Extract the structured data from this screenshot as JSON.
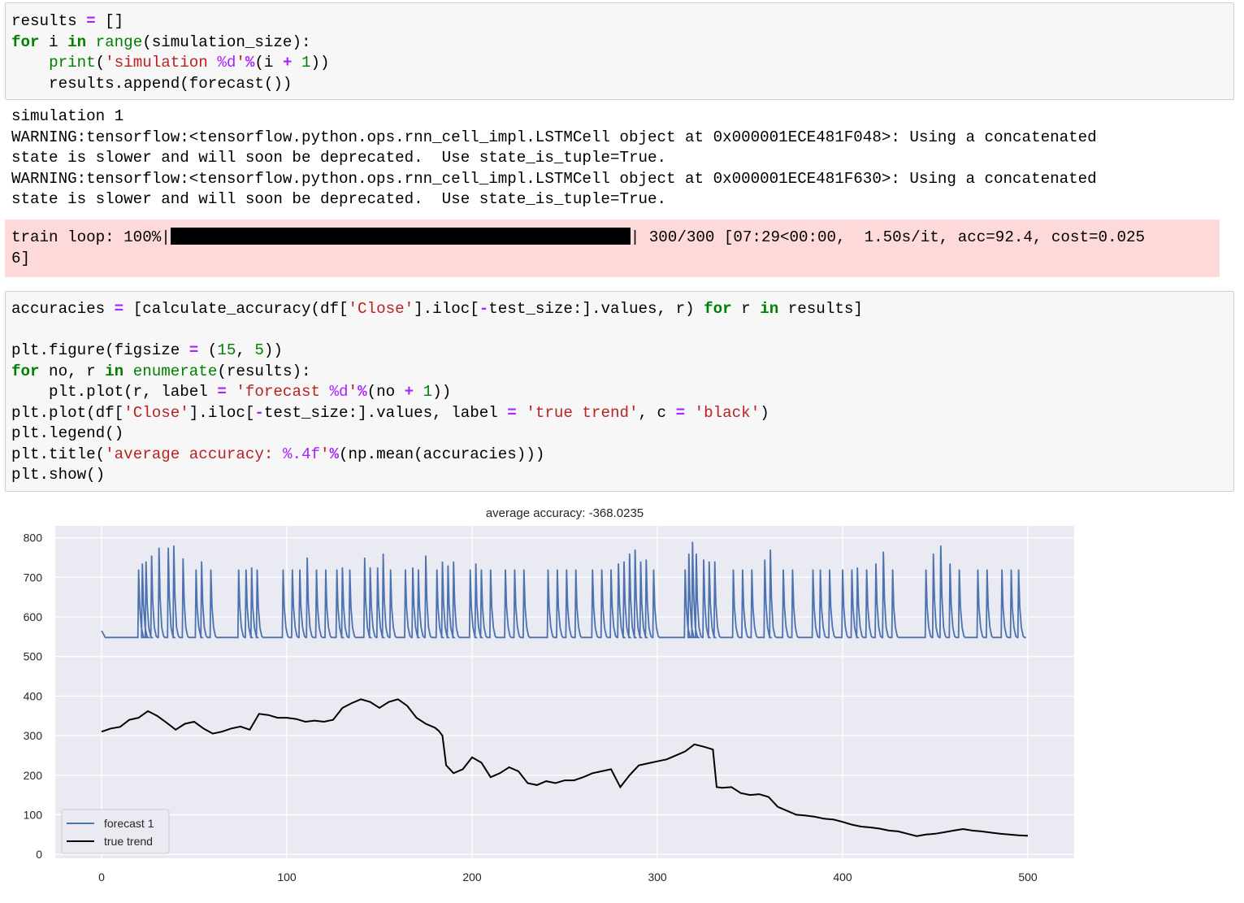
{
  "cell1": {
    "lines": [
      [
        [
          "results ",
          ""
        ],
        [
          "=",
          "op"
        ],
        [
          " []",
          ""
        ]
      ],
      [
        [
          "for",
          "kw"
        ],
        [
          " i ",
          ""
        ],
        [
          "in",
          "kw"
        ],
        [
          " ",
          ""
        ],
        [
          "range",
          "bi"
        ],
        [
          "(simulation_size):",
          ""
        ]
      ],
      [
        [
          "    ",
          ""
        ],
        [
          "print",
          "bi"
        ],
        [
          "(",
          ""
        ],
        [
          "'simulation ",
          "str"
        ],
        [
          "%d",
          "fmt"
        ],
        [
          "'",
          "str"
        ],
        [
          "%",
          "op"
        ],
        [
          "(i ",
          ""
        ],
        [
          "+",
          "op"
        ],
        [
          " ",
          ""
        ],
        [
          "1",
          "num"
        ],
        [
          "))",
          ""
        ]
      ],
      [
        [
          "    results.append(forecast())",
          ""
        ]
      ]
    ]
  },
  "output1": {
    "lines": [
      "simulation 1",
      "WARNING:tensorflow:<tensorflow.python.ops.rnn_cell_impl.LSTMCell object at 0x000001ECE481F048>: Using a concatenated",
      "state is slower and will soon be deprecated.  Use state_is_tuple=True.",
      "WARNING:tensorflow:<tensorflow.python.ops.rnn_cell_impl.LSTMCell object at 0x000001ECE481F630>: Using a concatenated",
      "state is slower and will soon be deprecated.  Use state_is_tuple=True."
    ]
  },
  "stderr": {
    "prefix": "train loop: 100%|",
    "progress": 1.0,
    "suffix": "| 300/300 [07:29<00:00,  1.50s/it, acc=92.4, cost=0.025",
    "line2": "6]"
  },
  "cell2": {
    "lines": [
      [
        [
          "accuracies ",
          ""
        ],
        [
          "=",
          "op"
        ],
        [
          " [calculate_accuracy(df[",
          ""
        ],
        [
          "'Close'",
          "str"
        ],
        [
          "].iloc[",
          ""
        ],
        [
          "-",
          "op"
        ],
        [
          "test_size:].values, r) ",
          ""
        ],
        [
          "for",
          "kw"
        ],
        [
          " r ",
          ""
        ],
        [
          "in",
          "kw"
        ],
        [
          " results]",
          ""
        ]
      ],
      [
        [
          "",
          ""
        ]
      ],
      [
        [
          "plt.figure(figsize ",
          ""
        ],
        [
          "=",
          "op"
        ],
        [
          " (",
          ""
        ],
        [
          "15",
          "num"
        ],
        [
          ", ",
          ""
        ],
        [
          "5",
          "num"
        ],
        [
          "))",
          ""
        ]
      ],
      [
        [
          "for",
          "kw"
        ],
        [
          " no, r ",
          ""
        ],
        [
          "in",
          "kw"
        ],
        [
          " ",
          ""
        ],
        [
          "enumerate",
          "bi"
        ],
        [
          "(results):",
          ""
        ]
      ],
      [
        [
          "    plt.plot(r, label ",
          ""
        ],
        [
          "=",
          "op"
        ],
        [
          " ",
          ""
        ],
        [
          "'forecast ",
          "str"
        ],
        [
          "%d",
          "fmt"
        ],
        [
          "'",
          "str"
        ],
        [
          "%",
          "op"
        ],
        [
          "(no ",
          ""
        ],
        [
          "+",
          "op"
        ],
        [
          " ",
          ""
        ],
        [
          "1",
          "num"
        ],
        [
          "))",
          ""
        ]
      ],
      [
        [
          "plt.plot(df[",
          ""
        ],
        [
          "'Close'",
          "str"
        ],
        [
          "].iloc[",
          ""
        ],
        [
          "-",
          "op"
        ],
        [
          "test_size:].values, label ",
          ""
        ],
        [
          "=",
          "op"
        ],
        [
          " ",
          ""
        ],
        [
          "'true trend'",
          "str"
        ],
        [
          ", c ",
          ""
        ],
        [
          "=",
          "op"
        ],
        [
          " ",
          ""
        ],
        [
          "'black'",
          "str"
        ],
        [
          ")",
          ""
        ]
      ],
      [
        [
          "plt.legend()",
          ""
        ]
      ],
      [
        [
          "plt.title(",
          ""
        ],
        [
          "'average accuracy: ",
          "str"
        ],
        [
          "%.4f",
          "fmt"
        ],
        [
          "'",
          "str"
        ],
        [
          "%",
          "op"
        ],
        [
          "(np.mean(accuracies)))",
          ""
        ]
      ],
      [
        [
          "plt.show()",
          ""
        ]
      ]
    ]
  },
  "chart_data": {
    "type": "line",
    "title": "average accuracy: -368.0235",
    "xlim": [
      -25,
      525
    ],
    "ylim": [
      -10,
      830
    ],
    "xticks": [
      0,
      100,
      200,
      300,
      400,
      500
    ],
    "yticks": [
      0,
      100,
      200,
      300,
      400,
      500,
      600,
      700,
      800
    ],
    "grid": true,
    "legend": "lower-left",
    "series": [
      {
        "name": "forecast 1",
        "color": "#4c72b0",
        "baseline": 548,
        "start": 565,
        "end": 548,
        "spikes": [
          [
            20,
            720
          ],
          [
            22,
            735
          ],
          [
            24,
            740
          ],
          [
            27,
            755
          ],
          [
            31,
            775
          ],
          [
            36,
            775
          ],
          [
            39,
            780
          ],
          [
            44,
            748
          ],
          [
            51,
            720
          ],
          [
            54,
            740
          ],
          [
            59,
            720
          ],
          [
            74,
            720
          ],
          [
            78,
            720
          ],
          [
            81,
            725
          ],
          [
            84,
            720
          ],
          [
            98,
            720
          ],
          [
            103,
            720
          ],
          [
            107,
            720
          ],
          [
            111,
            750
          ],
          [
            116,
            720
          ],
          [
            121,
            720
          ],
          [
            127,
            720
          ],
          [
            130,
            725
          ],
          [
            134,
            720
          ],
          [
            142,
            750
          ],
          [
            145,
            725
          ],
          [
            149,
            725
          ],
          [
            152,
            760
          ],
          [
            156,
            720
          ],
          [
            164,
            720
          ],
          [
            168,
            725
          ],
          [
            171,
            720
          ],
          [
            175,
            755
          ],
          [
            181,
            720
          ],
          [
            184,
            740
          ],
          [
            187,
            730
          ],
          [
            190,
            740
          ],
          [
            199,
            720
          ],
          [
            202,
            735
          ],
          [
            205,
            720
          ],
          [
            210,
            720
          ],
          [
            218,
            720
          ],
          [
            223,
            720
          ],
          [
            228,
            720
          ],
          [
            241,
            720
          ],
          [
            246,
            720
          ],
          [
            251,
            720
          ],
          [
            256,
            720
          ],
          [
            265,
            720
          ],
          [
            270,
            720
          ],
          [
            275,
            720
          ],
          [
            279,
            735
          ],
          [
            282,
            740
          ],
          [
            285,
            760
          ],
          [
            288,
            770
          ],
          [
            291,
            740
          ],
          [
            294,
            745
          ],
          [
            298,
            720
          ],
          [
            315,
            720
          ],
          [
            317,
            760
          ],
          [
            319,
            790
          ],
          [
            321,
            760
          ],
          [
            325,
            745
          ],
          [
            328,
            740
          ],
          [
            331,
            740
          ],
          [
            341,
            720
          ],
          [
            346,
            720
          ],
          [
            351,
            720
          ],
          [
            358,
            745
          ],
          [
            361,
            770
          ],
          [
            368,
            720
          ],
          [
            373,
            720
          ],
          [
            384,
            720
          ],
          [
            388,
            720
          ],
          [
            393,
            720
          ],
          [
            400,
            720
          ],
          [
            405,
            720
          ],
          [
            408,
            725
          ],
          [
            413,
            720
          ],
          [
            418,
            735
          ],
          [
            422,
            765
          ],
          [
            427,
            720
          ],
          [
            445,
            720
          ],
          [
            449,
            760
          ],
          [
            453,
            780
          ],
          [
            458,
            735
          ],
          [
            463,
            720
          ],
          [
            473,
            720
          ],
          [
            478,
            720
          ],
          [
            486,
            720
          ],
          [
            491,
            720
          ],
          [
            495,
            720
          ]
        ]
      },
      {
        "name": "true trend",
        "color": "#000000",
        "x": [
          0,
          5,
          10,
          15,
          20,
          25,
          30,
          35,
          40,
          45,
          50,
          55,
          60,
          65,
          70,
          75,
          80,
          85,
          90,
          95,
          100,
          105,
          110,
          115,
          120,
          125,
          130,
          135,
          140,
          145,
          150,
          155,
          160,
          165,
          170,
          175,
          180,
          182,
          184,
          186,
          190,
          195,
          200,
          205,
          210,
          215,
          220,
          225,
          230,
          235,
          240,
          245,
          250,
          255,
          260,
          265,
          270,
          275,
          280,
          285,
          290,
          295,
          300,
          305,
          310,
          315,
          320,
          325,
          330,
          332,
          335,
          340,
          345,
          350,
          355,
          360,
          365,
          370,
          375,
          380,
          385,
          390,
          395,
          400,
          405,
          410,
          415,
          420,
          425,
          430,
          435,
          440,
          445,
          450,
          455,
          460,
          465,
          470,
          475,
          480,
          485,
          490,
          495,
          500
        ],
        "y": [
          310,
          318,
          322,
          340,
          345,
          362,
          350,
          333,
          315,
          330,
          335,
          318,
          305,
          310,
          318,
          323,
          315,
          355,
          352,
          345,
          345,
          342,
          335,
          338,
          335,
          340,
          370,
          382,
          392,
          385,
          370,
          385,
          392,
          375,
          345,
          330,
          320,
          312,
          300,
          225,
          205,
          215,
          245,
          232,
          195,
          205,
          220,
          210,
          180,
          175,
          185,
          180,
          187,
          187,
          195,
          205,
          210,
          215,
          170,
          200,
          225,
          230,
          235,
          240,
          250,
          260,
          278,
          272,
          265,
          170,
          168,
          170,
          155,
          150,
          152,
          145,
          120,
          110,
          100,
          98,
          95,
          90,
          88,
          82,
          75,
          70,
          68,
          65,
          60,
          58,
          52,
          46,
          50,
          52,
          56,
          60,
          64,
          60,
          58,
          55,
          52,
          50,
          48,
          47
        ]
      }
    ]
  }
}
